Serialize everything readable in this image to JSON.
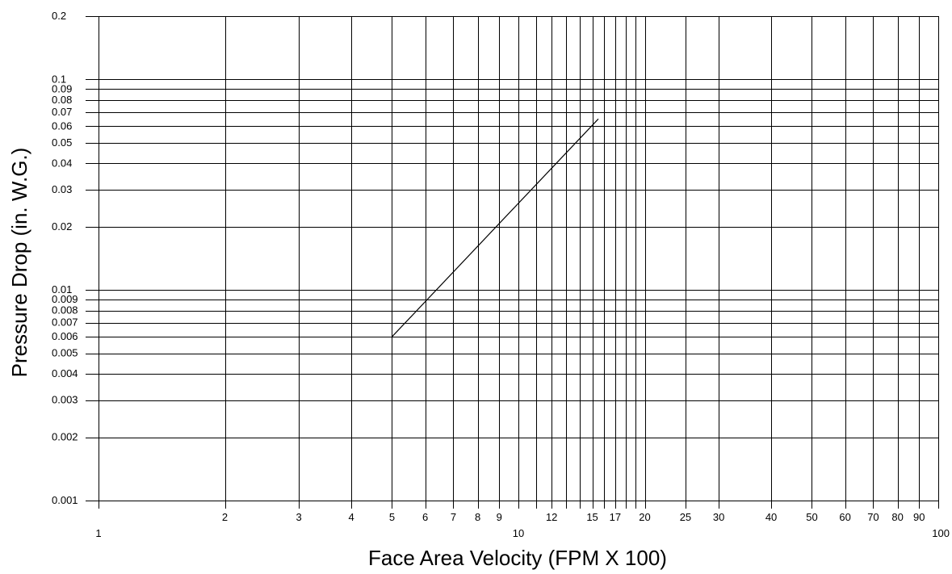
{
  "chart_data": {
    "type": "line",
    "title": "",
    "xlabel": "Face Area Velocity (FPM X 100)",
    "ylabel": "Pressure Drop (in. W.G.)",
    "x_scale": "log",
    "y_scale": "log",
    "xlim": [
      1,
      100
    ],
    "ylim": [
      0.001,
      0.2
    ],
    "grid": true,
    "legend": "none",
    "x_gridlines": [
      1,
      2,
      3,
      4,
      5,
      6,
      7,
      8,
      9,
      10,
      11,
      12,
      13,
      14,
      15,
      16,
      17,
      18,
      19,
      20,
      25,
      30,
      40,
      50,
      60,
      70,
      80,
      90,
      100
    ],
    "x_tick_labels": [
      {
        "value": 1,
        "label": "1"
      },
      {
        "value": 2,
        "label": "2"
      },
      {
        "value": 3,
        "label": "3"
      },
      {
        "value": 4,
        "label": "4"
      },
      {
        "value": 5,
        "label": "5"
      },
      {
        "value": 6,
        "label": "6"
      },
      {
        "value": 7,
        "label": "7"
      },
      {
        "value": 8,
        "label": "8"
      },
      {
        "value": 9,
        "label": "9"
      },
      {
        "value": 10,
        "label": "10"
      },
      {
        "value": 12,
        "label": "12"
      },
      {
        "value": 15,
        "label": "15"
      },
      {
        "value": 17,
        "label": "17"
      },
      {
        "value": 20,
        "label": "20"
      },
      {
        "value": 25,
        "label": "25"
      },
      {
        "value": 30,
        "label": "30"
      },
      {
        "value": 40,
        "label": "40"
      },
      {
        "value": 50,
        "label": "50"
      },
      {
        "value": 60,
        "label": "60"
      },
      {
        "value": 70,
        "label": "70"
      },
      {
        "value": 80,
        "label": "80"
      },
      {
        "value": 90,
        "label": "90"
      },
      {
        "value": 100,
        "label": "100"
      }
    ],
    "y_gridlines": [
      0.001,
      0.002,
      0.003,
      0.004,
      0.005,
      0.006,
      0.007,
      0.008,
      0.009,
      0.01,
      0.02,
      0.03,
      0.04,
      0.05,
      0.06,
      0.07,
      0.08,
      0.09,
      0.1,
      0.2
    ],
    "y_tick_labels": [
      {
        "value": 0.001,
        "label": "0.001"
      },
      {
        "value": 0.002,
        "label": "0.002"
      },
      {
        "value": 0.003,
        "label": "0.003"
      },
      {
        "value": 0.004,
        "label": "0.004"
      },
      {
        "value": 0.005,
        "label": "0.005"
      },
      {
        "value": 0.006,
        "label": "0.006"
      },
      {
        "value": 0.007,
        "label": "0.007"
      },
      {
        "value": 0.008,
        "label": "0.008"
      },
      {
        "value": 0.009,
        "label": "0.009"
      },
      {
        "value": 0.01,
        "label": "0.01"
      },
      {
        "value": 0.02,
        "label": "0.02"
      },
      {
        "value": 0.03,
        "label": "0.03"
      },
      {
        "value": 0.04,
        "label": "0.04"
      },
      {
        "value": 0.05,
        "label": "0.05"
      },
      {
        "value": 0.06,
        "label": "0.06"
      },
      {
        "value": 0.07,
        "label": "0.07"
      },
      {
        "value": 0.08,
        "label": "0.08"
      },
      {
        "value": 0.09,
        "label": "0.09"
      },
      {
        "value": 0.1,
        "label": "0.1"
      },
      {
        "value": 0.2,
        "label": "0.2"
      }
    ],
    "series": [
      {
        "x": [
          5,
          15.5
        ],
        "y": [
          0.006,
          0.065
        ]
      }
    ]
  }
}
